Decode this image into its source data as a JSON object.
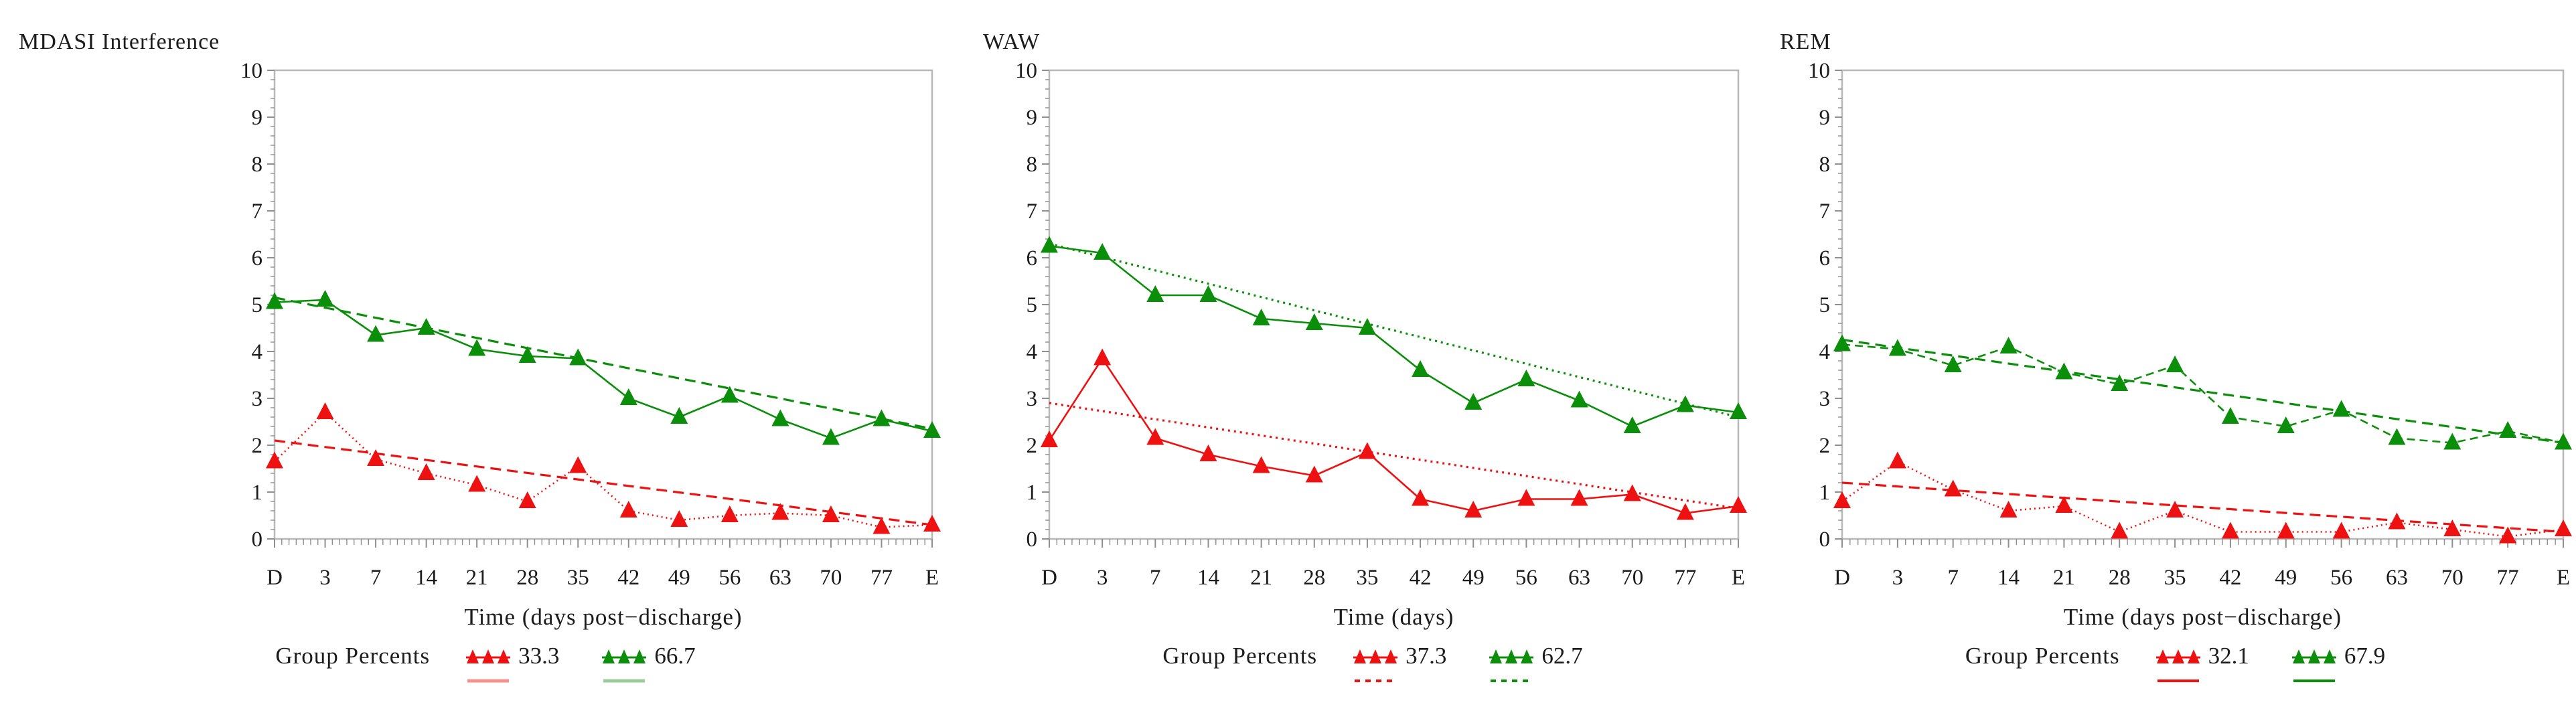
{
  "colors": {
    "red": "#ee1111",
    "green": "#0b8f0b",
    "light_red": "#f5928c",
    "light_green": "#9bcb9b",
    "axis_frame": "#b8b8b8",
    "tick": "#8f8f8f",
    "text": "#1c1c1c"
  },
  "chart_data": [
    {
      "type": "line",
      "title": "MDASI Interference",
      "xlabel": "Time (days post−discharge)",
      "ylim": [
        0,
        10
      ],
      "ytick_step": 1,
      "categories": [
        "D",
        "3",
        "7",
        "14",
        "21",
        "28",
        "35",
        "42",
        "49",
        "56",
        "63",
        "70",
        "77",
        "E"
      ],
      "series": [
        {
          "name": "33.3",
          "color_key": "red",
          "line_dash": "2,5",
          "values": [
            1.65,
            2.7,
            1.7,
            1.4,
            1.15,
            0.8,
            1.55,
            0.6,
            0.4,
            0.5,
            0.55,
            0.5,
            0.25,
            0.3
          ]
        },
        {
          "name": "66.7",
          "color_key": "green",
          "line_dash": "",
          "values": [
            5.05,
            5.1,
            4.35,
            4.5,
            4.05,
            3.9,
            3.85,
            3.0,
            2.6,
            3.05,
            2.55,
            2.15,
            2.55,
            2.3
          ]
        }
      ],
      "trend_lines": [
        {
          "color_key": "red",
          "start": 2.1,
          "end": 0.3,
          "dash": "16,9"
        },
        {
          "color_key": "green",
          "start": 5.15,
          "end": 2.35,
          "dash": "16,9"
        }
      ],
      "legend": {
        "label": "Group Percents",
        "red_value": "33.3",
        "green_value": "66.7",
        "trend_swatch": {
          "red_color": "light_red",
          "green_color": "light_green",
          "dash": "",
          "width": 5
        }
      }
    },
    {
      "type": "line",
      "title": "WAW",
      "xlabel": "Time (days)",
      "ylim": [
        0,
        10
      ],
      "ytick_step": 1,
      "categories": [
        "D",
        "3",
        "7",
        "14",
        "21",
        "28",
        "35",
        "42",
        "49",
        "56",
        "63",
        "70",
        "77",
        "E"
      ],
      "series": [
        {
          "name": "37.3",
          "color_key": "red",
          "line_dash": "",
          "values": [
            2.1,
            3.85,
            2.15,
            1.8,
            1.55,
            1.35,
            1.85,
            0.85,
            0.6,
            0.85,
            0.85,
            0.95,
            0.55,
            0.7
          ]
        },
        {
          "name": "62.7",
          "color_key": "green",
          "line_dash": "",
          "values": [
            6.25,
            6.1,
            5.2,
            5.2,
            4.7,
            4.6,
            4.5,
            3.6,
            2.9,
            3.4,
            2.95,
            2.4,
            2.85,
            2.7
          ]
        }
      ],
      "trend_lines": [
        {
          "color_key": "red",
          "start": 2.9,
          "end": 0.65,
          "dash": "3,6"
        },
        {
          "color_key": "green",
          "start": 6.3,
          "end": 2.6,
          "dash": "3,6"
        }
      ],
      "legend": {
        "label": "Group Percents",
        "red_value": "37.3",
        "green_value": "62.7",
        "trend_swatch": {
          "red_color": "red",
          "green_color": "green",
          "dash": "8,8",
          "width": 4
        }
      }
    },
    {
      "type": "line",
      "title": "REM",
      "xlabel": "Time (days post−discharge)",
      "ylim": [
        0,
        10
      ],
      "ytick_step": 1,
      "categories": [
        "D",
        "3",
        "7",
        "14",
        "21",
        "28",
        "35",
        "42",
        "49",
        "56",
        "63",
        "70",
        "77",
        "E"
      ],
      "series": [
        {
          "name": "32.1",
          "color_key": "red",
          "line_dash": "2,5",
          "values": [
            0.8,
            1.65,
            1.05,
            0.6,
            0.7,
            0.15,
            0.6,
            0.15,
            0.15,
            0.15,
            0.35,
            0.2,
            0.05,
            0.2
          ]
        },
        {
          "name": "67.9",
          "color_key": "green",
          "line_dash": "12,7",
          "values": [
            4.15,
            4.05,
            3.7,
            4.1,
            3.55,
            3.3,
            3.7,
            2.6,
            2.4,
            2.75,
            2.15,
            2.05,
            2.3,
            2.05
          ]
        }
      ],
      "trend_lines": [
        {
          "color_key": "red",
          "start": 1.2,
          "end": 0.15,
          "dash": "16,9"
        },
        {
          "color_key": "green",
          "start": 4.25,
          "end": 2.05,
          "dash": "16,9"
        }
      ],
      "legend": {
        "label": "Group Percents",
        "red_value": "32.1",
        "green_value": "67.9",
        "trend_swatch": {
          "red_color": "red",
          "green_color": "green",
          "dash": "",
          "width": 4
        }
      }
    }
  ]
}
